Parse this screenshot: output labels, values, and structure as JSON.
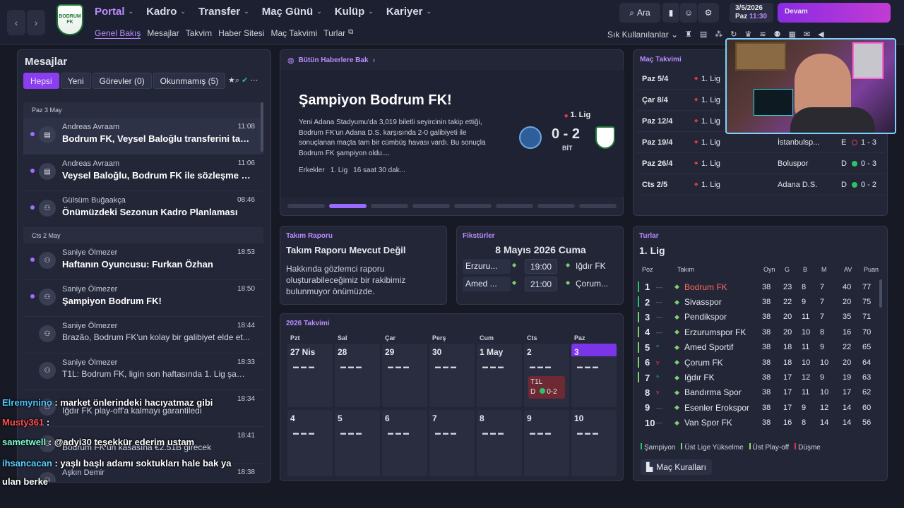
{
  "nav": {
    "crest_text": "BODRUM FK",
    "main": [
      {
        "label": "Portal",
        "active": true
      },
      {
        "label": "Kadro"
      },
      {
        "label": "Transfer"
      },
      {
        "label": "Maç Günü"
      },
      {
        "label": "Kulüp"
      },
      {
        "label": "Kariyer"
      }
    ],
    "sub": [
      {
        "label": "Genel Bakış",
        "active": true
      },
      {
        "label": "Mesajlar"
      },
      {
        "label": "Takvim"
      },
      {
        "label": "Haber Sitesi"
      },
      {
        "label": "Maç Takvimi"
      },
      {
        "label": "Turlar"
      }
    ],
    "search_label": "Ara",
    "date": "3/5/2026",
    "day_label": "Paz",
    "time": "11:30",
    "continue_label": "Devam",
    "shortcuts_label": "Sık Kullanılanlar"
  },
  "messages": {
    "title": "Mesajlar",
    "tabs": [
      "Hepsi",
      "Yeni",
      "Görevler (0)",
      "Okunmamış (5)"
    ],
    "days": [
      {
        "label": "Paz 3 May",
        "items": [
          {
            "sender": "Andreas Avraam",
            "time": "11:08",
            "subject": "Bodrum FK, Veysel Baloğlu transferini tam...",
            "unread": true,
            "selected": true,
            "icon": "card-icon"
          },
          {
            "sender": "Andreas Avraam",
            "time": "11:06",
            "subject": "Veysel Baloğlu, Bodrum FK ile sözleşme im...",
            "unread": true,
            "icon": "card-icon"
          },
          {
            "sender": "Gülsüm Buğaakça",
            "time": "08:46",
            "subject": "Önümüzdeki Sezonun Kadro Planlaması",
            "unread": true,
            "icon": "people-icon"
          }
        ]
      },
      {
        "label": "Cts 2 May",
        "items": [
          {
            "sender": "Saniye Ölmezer",
            "time": "18:53",
            "subject": "Haftanın Oyuncusu: Furkan Özhan",
            "unread": true,
            "icon": "people-icon"
          },
          {
            "sender": "Saniye Ölmezer",
            "time": "18:50",
            "subject": "Şampiyon Bodrum FK!",
            "unread": true,
            "icon": "people-icon"
          },
          {
            "sender": "Saniye Ölmezer",
            "time": "18:44",
            "subject": "Brazão, Bodrum FK'un kolay bir galibiyet elde et...",
            "dim": true,
            "icon": "people-icon"
          },
          {
            "sender": "Saniye Ölmezer",
            "time": "18:33",
            "subject": "T1L: Bodrum FK, ligin son haftasında 1. Lig şampi...",
            "dim": true,
            "icon": "people-icon"
          },
          {
            "sender": "",
            "time": "18:34",
            "subject": "Iğdır FK play-off'a kalmayı garantiledi",
            "dim": true,
            "icon": "people-icon"
          },
          {
            "sender": "",
            "time": "18:41",
            "subject": "Bodrum FK'un kasasına €2.51B girecek",
            "dim": true,
            "icon": "people-icon"
          },
          {
            "sender": "Aşkın Demir",
            "time": "18:38",
            "subject": "",
            "dim": true,
            "icon": "people-icon"
          }
        ]
      }
    ]
  },
  "news": {
    "header": "Bütün Haberlere Bak",
    "title": "Şampiyon Bodrum FK!",
    "body": "Yeni Adana Stadyumu'da 3,019 biletli seyircinin takip ettiği, Bodrum FK'un Adana D.S. karşısında 2-0 galibiyeti ile sonuçlanan maçta tam bir cümbüş havası vardı. Bu sonuçla Bodrum FK şampiyon oldu....",
    "meta": [
      "Erkekler",
      "1. Lig",
      "16 saat 30 dak..."
    ],
    "league": "1. Lig",
    "score": "0 - 2",
    "status": "BİT"
  },
  "fixtures_panel": {
    "title": "Maç Takvimi",
    "rows": [
      {
        "date": "Paz 5/4",
        "comp": "1. Lig",
        "opp": "",
        "ha": "",
        "result": "",
        "outcome": ""
      },
      {
        "date": "Çar 8/4",
        "comp": "1. Lig",
        "opp": "",
        "ha": "",
        "result": "",
        "outcome": ""
      },
      {
        "date": "Paz 12/4",
        "comp": "1. Lig",
        "opp": "",
        "ha": "",
        "result": "",
        "outcome": ""
      },
      {
        "date": "Paz 19/4",
        "comp": "1. Lig",
        "opp": "İstanbulsp...",
        "ha": "E",
        "result": "1 - 3",
        "outcome": "loss"
      },
      {
        "date": "Paz 26/4",
        "comp": "1. Lig",
        "opp": "Boluspor",
        "ha": "D",
        "result": "0 - 3",
        "outcome": "win"
      },
      {
        "date": "Cts 2/5",
        "comp": "1. Lig",
        "opp": "Adana D.S.",
        "ha": "D",
        "result": "0 - 2",
        "outcome": "win"
      }
    ]
  },
  "report": {
    "title": "Takım Raporu",
    "heading": "Takım Raporu Mevcut Değil",
    "body": "Hakkında gözlemci raporu oluşturabileceğimiz bir rakibimiz bulunmuyor önümüzde."
  },
  "fikstur": {
    "title": "Fikstürler",
    "date": "8 Mayıs 2026 Cuma",
    "matches": [
      {
        "home": "Erzuru...",
        "time": "19:00",
        "away": "Iğdır FK"
      },
      {
        "home": "Amed ...",
        "time": "21:00",
        "away": "Çorum..."
      }
    ]
  },
  "calendar": {
    "title": "2026 Takvimi",
    "days": [
      "Pzt",
      "Sal",
      "Çar",
      "Perş",
      "Cum",
      "Cts",
      "Paz"
    ],
    "week1": [
      "27 Nis",
      "28",
      "29",
      "30",
      "1 May",
      "2",
      "3"
    ],
    "week2": [
      "4",
      "5",
      "6",
      "7",
      "8",
      "9",
      "10"
    ],
    "match_comp": "T1L",
    "match_ha": "D",
    "match_result": "0-2"
  },
  "table": {
    "title": "Turlar",
    "league": "1. Lig",
    "headers": [
      "Poz",
      "Takım",
      "Oyn",
      "G",
      "B",
      "M",
      "AV",
      "Puan"
    ],
    "rows": [
      {
        "pos": "1",
        "move": "—",
        "team": "Bodrum FK",
        "p": "38",
        "w": "23",
        "d": "8",
        "l": "7",
        "gd": "40",
        "pts": "77",
        "zone": "#29c46b",
        "highlight": true
      },
      {
        "pos": "2",
        "move": "—",
        "team": "Sivasspor",
        "p": "38",
        "w": "22",
        "d": "9",
        "l": "7",
        "gd": "20",
        "pts": "75",
        "zone": "#29c46b"
      },
      {
        "pos": "3",
        "move": "—",
        "team": "Pendikspor",
        "p": "38",
        "w": "20",
        "d": "11",
        "l": "7",
        "gd": "35",
        "pts": "71",
        "zone": "#7dd36b"
      },
      {
        "pos": "4",
        "move": "—",
        "team": "Erzurumspor FK",
        "p": "38",
        "w": "20",
        "d": "10",
        "l": "8",
        "gd": "16",
        "pts": "70",
        "zone": "#7dd36b"
      },
      {
        "pos": "5",
        "move": "^",
        "team": "Amed Sportif",
        "p": "38",
        "w": "18",
        "d": "11",
        "l": "9",
        "gd": "22",
        "pts": "65",
        "zone": "#7dd36b"
      },
      {
        "pos": "6",
        "move": "v",
        "team": "Çorum FK",
        "p": "38",
        "w": "18",
        "d": "10",
        "l": "10",
        "gd": "20",
        "pts": "64",
        "zone": "#7dd36b"
      },
      {
        "pos": "7",
        "move": "^",
        "team": "Iğdır FK",
        "p": "38",
        "w": "17",
        "d": "12",
        "l": "9",
        "gd": "19",
        "pts": "63",
        "zone": "#7dd36b"
      },
      {
        "pos": "8",
        "move": "v",
        "team": "Bandırma Spor",
        "p": "38",
        "w": "17",
        "d": "11",
        "l": "10",
        "gd": "17",
        "pts": "62",
        "zone": ""
      },
      {
        "pos": "9",
        "move": "—",
        "team": "Esenler Erokspor",
        "p": "38",
        "w": "17",
        "d": "9",
        "l": "12",
        "gd": "14",
        "pts": "60",
        "zone": ""
      },
      {
        "pos": "10",
        "move": "—",
        "team": "Van Spor FK",
        "p": "38",
        "w": "16",
        "d": "8",
        "l": "14",
        "gd": "14",
        "pts": "56",
        "zone": ""
      }
    ],
    "legend": [
      "Şampiyon",
      "Üst Lige Yükselme",
      "Üst Play-off",
      "Düşme"
    ],
    "rules_label": "Maç Kuralları"
  },
  "chat": [
    {
      "user": "Elremynino",
      "color": "#4fc3f7",
      "text": "market önlerindeki hacıyatmaz gibi"
    },
    {
      "user": "Musty361",
      "color": "#ff4d4d",
      "text": ""
    },
    {
      "user": "sametwell",
      "color": "#7fffd4",
      "text": "@adyi30 teşekkür ederim ustam"
    },
    {
      "user": "ihsancacan",
      "color": "#5ad1ff",
      "text": "yaşlı başlı adamı soktukları hale bak ya"
    },
    {
      "user": "",
      "color": "#ffffff",
      "text": "ulan berke"
    }
  ],
  "colors": {
    "accent": "#b98cff",
    "win": "#29c46b",
    "loss": "#e0384b"
  }
}
